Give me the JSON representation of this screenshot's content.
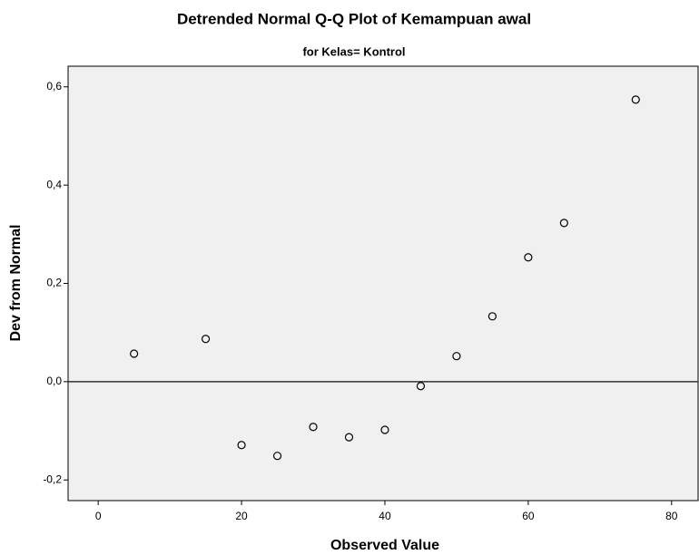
{
  "chart_data": {
    "type": "scatter",
    "title": "Detrended Normal Q-Q Plot of Kemampuan awal",
    "subtitle": "for Kelas= Kontrol",
    "x_label": "Observed Value",
    "y_label": "Dev from Normal",
    "x": [
      5,
      15,
      20,
      25,
      30,
      35,
      40,
      45,
      50,
      55,
      60,
      65,
      75
    ],
    "values": [
      0.057,
      0.087,
      -0.129,
      -0.151,
      -0.092,
      -0.113,
      -0.098,
      -0.009,
      0.052,
      0.133,
      0.253,
      0.323,
      0.574
    ],
    "xlim": [
      -4.2,
      83.7
    ],
    "ylim": [
      -0.242,
      0.642
    ],
    "xticks": [
      0,
      20,
      40,
      60,
      80
    ],
    "yticks": [
      {
        "value": -0.2,
        "label": "-0,2"
      },
      {
        "value": 0,
        "label": "0,0"
      },
      {
        "value": 0.2,
        "label": "0,2"
      },
      {
        "value": 0.4,
        "label": "0,4"
      },
      {
        "value": 0.6,
        "label": "0,6"
      }
    ],
    "reference_line": 0,
    "color": "#000000",
    "background": "#f0f0f0"
  }
}
